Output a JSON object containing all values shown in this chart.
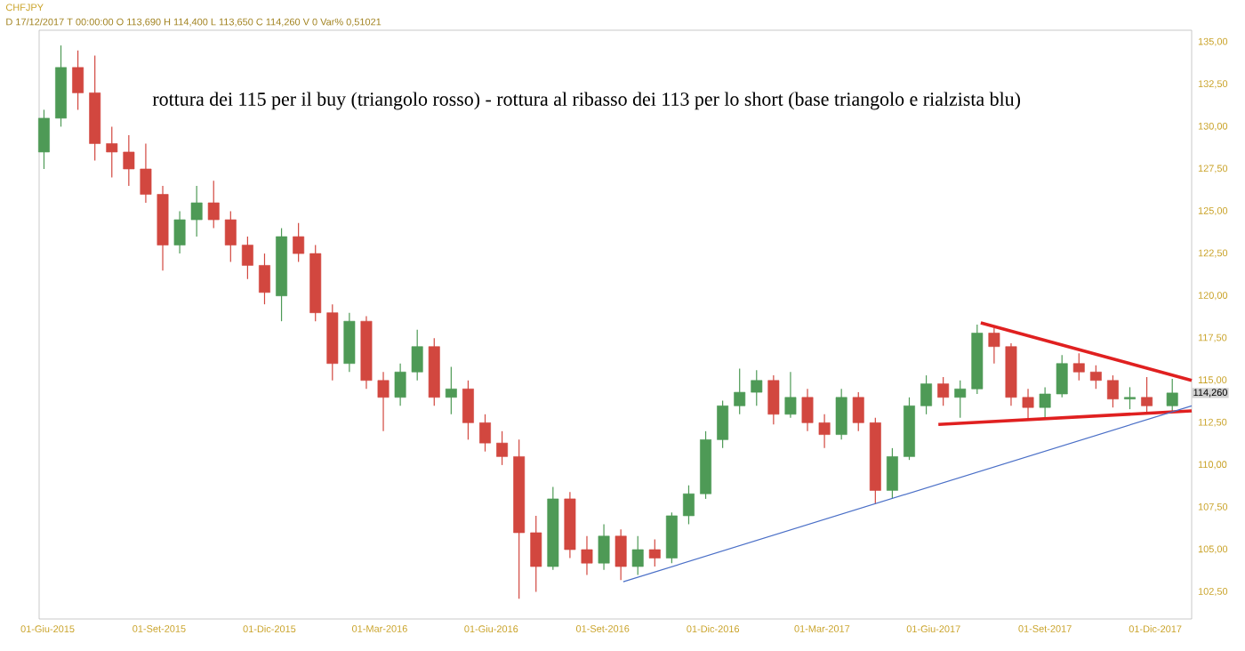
{
  "chart_data": {
    "type": "candlestick",
    "title": "CHFJPY",
    "subtitle": "D 17/12/2017  T 00:00:00  O 113,690  H 114,400  L 113,650  C 114,260  V 0  Var% 0,51021",
    "annotations": [
      "rottura dei 115 per il buy (triangolo rosso) - rottura al ribasso dei 113 per lo short (base triangolo e rialzista blu)",
      "114,260"
    ],
    "xlim": [
      "2015-05-25",
      "2017-12-31"
    ],
    "xticks": [
      {
        "value": "2015-06-01",
        "label": "01-Giu-2015"
      },
      {
        "value": "2015-09-01",
        "label": "01-Set-2015"
      },
      {
        "value": "2015-12-01",
        "label": "01-Dic-2015"
      },
      {
        "value": "2016-03-01",
        "label": "01-Mar-2016"
      },
      {
        "value": "2016-06-01",
        "label": "01-Giu-2016"
      },
      {
        "value": "2016-09-01",
        "label": "01-Set-2016"
      },
      {
        "value": "2016-12-01",
        "label": "01-Dic-2016"
      },
      {
        "value": "2017-03-01",
        "label": "01-Mar-2017"
      },
      {
        "value": "2017-06-01",
        "label": "01-Giu-2017"
      },
      {
        "value": "2017-09-01",
        "label": "01-Set-2017"
      },
      {
        "value": "2017-12-01",
        "label": "01-Dic-2017"
      }
    ],
    "ylim": [
      100.9,
      135.7
    ],
    "yticks": [
      {
        "value": 102.5,
        "label": "102,50"
      },
      {
        "value": 105,
        "label": "105,00"
      },
      {
        "value": 107.5,
        "label": "107,50"
      },
      {
        "value": 110,
        "label": "110,00"
      },
      {
        "value": 112.5,
        "label": "112,50"
      },
      {
        "value": 115,
        "label": "115,00"
      },
      {
        "value": 117.5,
        "label": "117,50"
      },
      {
        "value": 120,
        "label": "120,00"
      },
      {
        "value": 122.5,
        "label": "122,50"
      },
      {
        "value": 125,
        "label": "125,00"
      },
      {
        "value": 127.5,
        "label": "127,50"
      },
      {
        "value": 130,
        "label": "130,00"
      },
      {
        "value": 132.5,
        "label": "132,50"
      },
      {
        "value": 135,
        "label": "135,00"
      }
    ],
    "grid": false,
    "series": [
      {
        "x": [
          "2015-05-29",
          "2015-06-12",
          "2015-06-26",
          "2015-07-10",
          "2015-07-24",
          "2015-08-07",
          "2015-08-21",
          "2015-09-04",
          "2015-09-18",
          "2015-10-02",
          "2015-10-16",
          "2015-10-30",
          "2015-11-13",
          "2015-11-27",
          "2015-12-11",
          "2015-12-25",
          "2016-01-08",
          "2016-01-22",
          "2016-02-05",
          "2016-02-19",
          "2016-03-04",
          "2016-03-18",
          "2016-04-01",
          "2016-04-15",
          "2016-04-29",
          "2016-05-13",
          "2016-05-27",
          "2016-06-10",
          "2016-06-24",
          "2016-07-08",
          "2016-07-22",
          "2016-08-05",
          "2016-08-19",
          "2016-09-02",
          "2016-09-16",
          "2016-09-30",
          "2016-10-14",
          "2016-10-28",
          "2016-11-11",
          "2016-11-25",
          "2016-12-09",
          "2016-12-23",
          "2017-01-06",
          "2017-01-20",
          "2017-02-03",
          "2017-02-17",
          "2017-03-03",
          "2017-03-17",
          "2017-03-31",
          "2017-04-14",
          "2017-04-28",
          "2017-05-12",
          "2017-05-26",
          "2017-06-09",
          "2017-06-23",
          "2017-07-07",
          "2017-07-21",
          "2017-08-04",
          "2017-08-18",
          "2017-09-01",
          "2017-09-15",
          "2017-09-29",
          "2017-10-13",
          "2017-10-27",
          "2017-11-10",
          "2017-11-24",
          "2017-12-15"
        ],
        "ohlc": [
          [
            128.5,
            131,
            127.5,
            130.5
          ],
          [
            130.5,
            134.8,
            130,
            133.5
          ],
          [
            133.5,
            134.5,
            131,
            132
          ],
          [
            132,
            134.2,
            128,
            129
          ],
          [
            129,
            130,
            127,
            128.5
          ],
          [
            128.5,
            129.5,
            126.5,
            127.5
          ],
          [
            127.5,
            129,
            125.5,
            126
          ],
          [
            126,
            126.5,
            121.5,
            123
          ],
          [
            123,
            125,
            122.5,
            124.5
          ],
          [
            124.5,
            126.5,
            123.5,
            125.5
          ],
          [
            125.5,
            126.8,
            124,
            124.5
          ],
          [
            124.5,
            125,
            122,
            123
          ],
          [
            123,
            123.5,
            121,
            121.8
          ],
          [
            121.8,
            122.5,
            119.5,
            120.2
          ],
          [
            120,
            124,
            118.5,
            123.5
          ],
          [
            123.5,
            124.3,
            122,
            122.5
          ],
          [
            122.5,
            123,
            118.5,
            119
          ],
          [
            119,
            119.5,
            115,
            116
          ],
          [
            116,
            119,
            115.5,
            118.5
          ],
          [
            118.5,
            118.8,
            114.5,
            115
          ],
          [
            115,
            115.5,
            112,
            114
          ],
          [
            114,
            116,
            113.5,
            115.5
          ],
          [
            115.5,
            118,
            115,
            117
          ],
          [
            117,
            117.5,
            113.5,
            114
          ],
          [
            114,
            115.8,
            113,
            114.5
          ],
          [
            114.5,
            115,
            111.5,
            112.5
          ],
          [
            112.5,
            113,
            110.8,
            111.3
          ],
          [
            111.3,
            112,
            110,
            110.5
          ],
          [
            110.5,
            111.5,
            102.1,
            106
          ],
          [
            106,
            107,
            102.5,
            104
          ],
          [
            104,
            108.7,
            103.8,
            108
          ],
          [
            108,
            108.4,
            104.5,
            105
          ],
          [
            105,
            105.8,
            103.5,
            104.2
          ],
          [
            104.2,
            106.5,
            103.8,
            105.8
          ],
          [
            105.8,
            106.2,
            103.2,
            104
          ],
          [
            104,
            105.8,
            103.5,
            105
          ],
          [
            105,
            105.6,
            104,
            104.5
          ],
          [
            104.5,
            107.2,
            104.2,
            107
          ],
          [
            107,
            108.8,
            106.5,
            108.3
          ],
          [
            108.3,
            112,
            108,
            111.5
          ],
          [
            111.5,
            113.8,
            111,
            113.5
          ],
          [
            113.5,
            115.7,
            113,
            114.3
          ],
          [
            114.3,
            115.6,
            113.5,
            115
          ],
          [
            115,
            115.3,
            112.4,
            113
          ],
          [
            113,
            115.5,
            112.8,
            114
          ],
          [
            114,
            114.5,
            112,
            112.5
          ],
          [
            112.5,
            113,
            111,
            111.8
          ],
          [
            111.8,
            114.5,
            111.5,
            114
          ],
          [
            114,
            114.3,
            112,
            112.5
          ],
          [
            112.5,
            112.8,
            107.7,
            108.5
          ],
          [
            108.5,
            111,
            108,
            110.5
          ],
          [
            110.5,
            114,
            110.3,
            113.5
          ],
          [
            113.5,
            115.3,
            113,
            114.8
          ],
          [
            114.8,
            115.2,
            113.5,
            114
          ],
          [
            114,
            115,
            112.8,
            114.5
          ],
          [
            114.5,
            118.3,
            114.2,
            117.8
          ],
          [
            117.8,
            118.1,
            116,
            117
          ],
          [
            117,
            117.2,
            113.5,
            114
          ],
          [
            114,
            114.5,
            112.7,
            113.4
          ],
          [
            113.4,
            114.6,
            112.8,
            114.2
          ],
          [
            114.2,
            116.5,
            114,
            116
          ],
          [
            116,
            116.6,
            115,
            115.5
          ],
          [
            115.5,
            115.9,
            114.5,
            115
          ],
          [
            115,
            115.3,
            113.4,
            113.9
          ],
          [
            113.9,
            114.6,
            113.3,
            114
          ],
          [
            114,
            115.2,
            113,
            113.5
          ],
          [
            113.5,
            115.1,
            113.2,
            114.26
          ]
        ]
      },
      {
        "type": "line",
        "color": "#e02020",
        "x": [
          "2017-07-10",
          "2017-12-31"
        ],
        "values": [
          118.4,
          115.0
        ]
      },
      {
        "type": "line",
        "color": "#e02020",
        "x": [
          "2017-06-05",
          "2017-12-31"
        ],
        "values": [
          112.4,
          113.2
        ]
      },
      {
        "type": "line",
        "color": "#4a6fc7",
        "x": [
          "2016-09-18",
          "2017-12-31"
        ],
        "values": [
          103.1,
          113.5
        ]
      }
    ]
  }
}
